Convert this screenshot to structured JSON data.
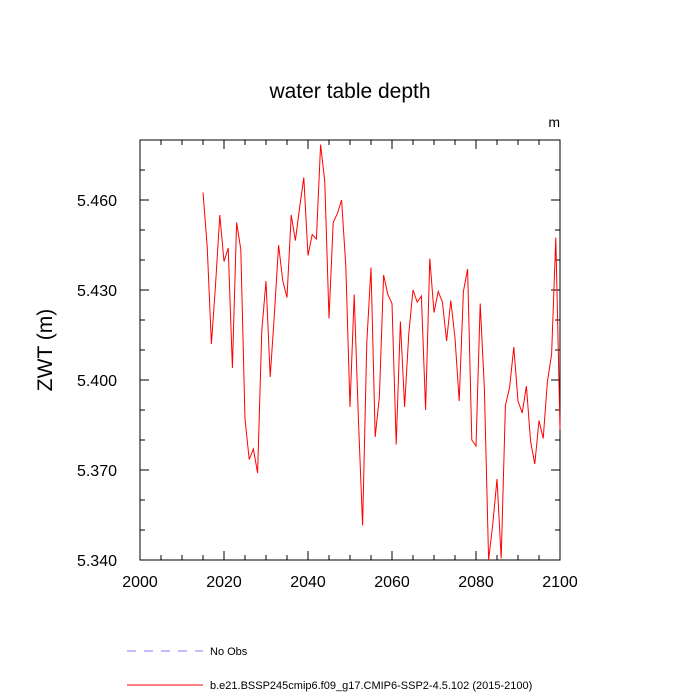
{
  "chart_data": {
    "type": "line",
    "title": "water table depth",
    "units": "m",
    "xlabel": "",
    "ylabel": "ZWT  (m)",
    "xlim": [
      2000,
      2100
    ],
    "ylim": [
      5.34,
      5.48
    ],
    "xticks": [
      2000,
      2020,
      2040,
      2060,
      2080,
      2100
    ],
    "xtick_labels": [
      "2000",
      "2020",
      "2040",
      "2060",
      "2080",
      "2100"
    ],
    "yticks": [
      5.34,
      5.37,
      5.4,
      5.43,
      5.46
    ],
    "ytick_labels": [
      "5.340",
      "5.370",
      "5.400",
      "5.430",
      "5.460"
    ],
    "series": [
      {
        "name": "b.e21.BSSP245cmip6.f09_g17.CMIP6-SSP2-4.5.102 (2015-2100)",
        "color": "#ff0000",
        "style": "solid",
        "x": [
          2015,
          2016,
          2017,
          2018,
          2019,
          2020,
          2021,
          2022,
          2023,
          2024,
          2025,
          2026,
          2027,
          2028,
          2029,
          2030,
          2031,
          2032,
          2033,
          2034,
          2035,
          2036,
          2037,
          2038,
          2039,
          2040,
          2041,
          2042,
          2043,
          2044,
          2045,
          2046,
          2047,
          2048,
          2049,
          2050,
          2051,
          2052,
          2053,
          2054,
          2055,
          2056,
          2057,
          2058,
          2059,
          2060,
          2061,
          2062,
          2063,
          2064,
          2065,
          2066,
          2067,
          2068,
          2069,
          2070,
          2071,
          2072,
          2073,
          2074,
          2075,
          2076,
          2077,
          2078,
          2079,
          2080,
          2081,
          2082,
          2083,
          2084,
          2085,
          2086,
          2087,
          2088,
          2089,
          2090,
          2091,
          2092,
          2093,
          2094,
          2095,
          2096,
          2097,
          2098,
          2099,
          2100
        ],
        "y": [
          5.4625,
          5.4445,
          5.412,
          5.432,
          5.455,
          5.4395,
          5.444,
          5.404,
          5.4525,
          5.4435,
          5.387,
          5.3735,
          5.377,
          5.369,
          5.4165,
          5.433,
          5.401,
          5.422,
          5.445,
          5.433,
          5.4275,
          5.455,
          5.4465,
          5.4575,
          5.4675,
          5.4415,
          5.4485,
          5.447,
          5.4785,
          5.466,
          5.4205,
          5.4525,
          5.4555,
          5.46,
          5.438,
          5.391,
          5.4285,
          5.387,
          5.3515,
          5.4125,
          5.4375,
          5.381,
          5.3945,
          5.435,
          5.4285,
          5.4255,
          5.3785,
          5.4195,
          5.391,
          5.4155,
          5.43,
          5.426,
          5.428,
          5.39,
          5.4405,
          5.4225,
          5.4295,
          5.426,
          5.413,
          5.4265,
          5.414,
          5.393,
          5.4295,
          5.437,
          5.38,
          5.378,
          5.4255,
          5.397,
          5.34,
          5.352,
          5.367,
          5.3405,
          5.3915,
          5.3975,
          5.411,
          5.393,
          5.389,
          5.398,
          5.3795,
          5.372,
          5.3865,
          5.3805,
          5.3995,
          5.4085,
          5.4475,
          5.3835
        ]
      },
      {
        "name": "No Obs",
        "color": "#7f7fff",
        "style": "dashed",
        "x": [],
        "y": []
      }
    ],
    "legend_placement": "bottom-left"
  }
}
